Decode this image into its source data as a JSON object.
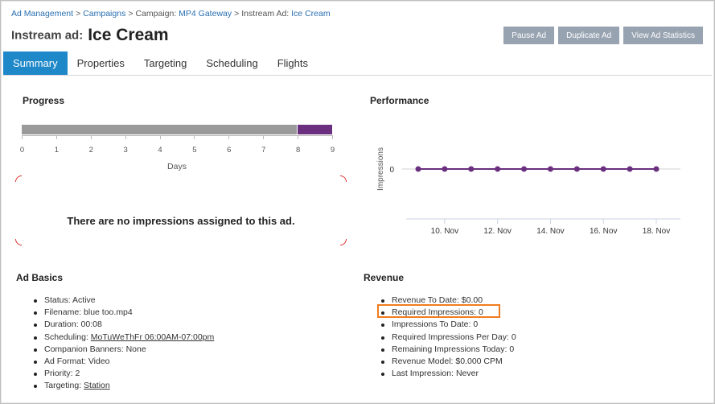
{
  "breadcrumb": {
    "ad_management": "Ad Management",
    "sep": ">",
    "campaigns": "Campaigns",
    "campaign_prefix": "Campaign:",
    "campaign_name": "MP4 Gateway",
    "instream_prefix": "Instream Ad:",
    "instream_name": "Ice Cream"
  },
  "header": {
    "title_prefix": "Instream ad:",
    "title": "Ice Cream"
  },
  "actions": {
    "pause": "Pause Ad",
    "duplicate": "Duplicate Ad",
    "stats": "View Ad Statistics"
  },
  "tabs": [
    {
      "label": "Summary",
      "active": true
    },
    {
      "label": "Properties",
      "active": false
    },
    {
      "label": "Targeting",
      "active": false
    },
    {
      "label": "Scheduling",
      "active": false
    },
    {
      "label": "Flights",
      "active": false
    }
  ],
  "progress": {
    "title": "Progress",
    "xlabel": "Days",
    "ticks": [
      "0",
      "1",
      "2",
      "3",
      "4",
      "5",
      "6",
      "7",
      "8",
      "9"
    ],
    "elapsed_days": 8,
    "total_days": 9,
    "elapsed_color": "#9a9a9a",
    "remaining_color": "#6a2f7e"
  },
  "no_impressions": "There are no impressions assigned to this ad.",
  "performance": {
    "title": "Performance"
  },
  "chart_data": {
    "type": "line",
    "title": "",
    "ylabel": "Impressions",
    "xlabel": "",
    "x": [
      "9. Nov",
      "10. Nov",
      "11. Nov",
      "12. Nov",
      "13. Nov",
      "14. Nov",
      "15. Nov",
      "16. Nov",
      "17. Nov",
      "18. Nov"
    ],
    "x_tick_labels": [
      "10. Nov",
      "12. Nov",
      "14. Nov",
      "16. Nov",
      "18. Nov"
    ],
    "y_tick_labels": [
      "0"
    ],
    "series": [
      {
        "values": [
          0,
          0,
          0,
          0,
          0,
          0,
          0,
          0,
          0,
          0
        ],
        "color": "#6a2f7e"
      }
    ],
    "grid": false,
    "legend": "none"
  },
  "ad_basics": {
    "title": "Ad Basics",
    "items": [
      {
        "label": "Status:",
        "value": "Active"
      },
      {
        "label": "Filename:",
        "value": "blue too.mp4"
      },
      {
        "label": "Duration:",
        "value": "00:08"
      },
      {
        "label": "Scheduling:",
        "value": "MoTuWeThFr 06:00AM-07:00pm",
        "link": true
      },
      {
        "label": "Companion Banners:",
        "value": "None"
      },
      {
        "label": "Ad Format:",
        "value": "Video"
      },
      {
        "label": "Priority:",
        "value": "2"
      },
      {
        "label": "Targeting:",
        "value": "Station",
        "link": true
      }
    ]
  },
  "revenue": {
    "title": "Revenue",
    "items": [
      {
        "label": "Revenue To Date:",
        "value": "$0.00"
      },
      {
        "label": "Required Impressions:",
        "value": "0"
      },
      {
        "label": "Impressions To Date:",
        "value": "0"
      },
      {
        "label": "Required Impressions Per Day:",
        "value": "0"
      },
      {
        "label": "Remaining Impressions Today:",
        "value": "0"
      },
      {
        "label": "Revenue Model:",
        "value": "$0.000 CPM"
      },
      {
        "label": "Last Impression:",
        "value": "Never"
      }
    ],
    "highlight_color": "#f07c1e"
  }
}
